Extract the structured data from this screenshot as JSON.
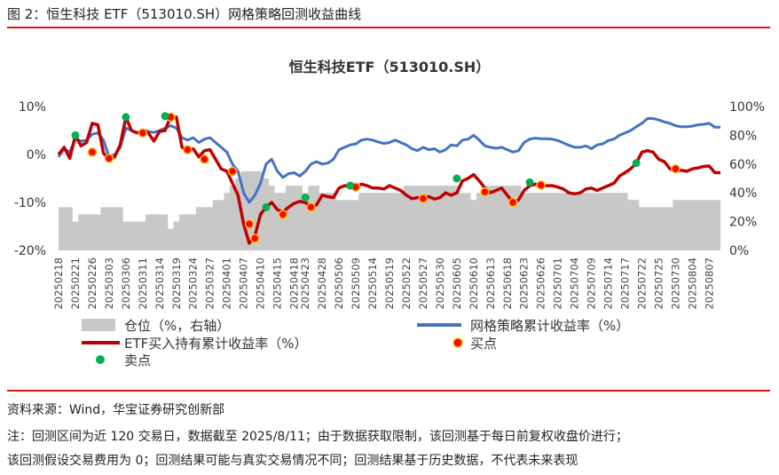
{
  "figure": {
    "caption": "图 2：恒生科技 ETF（513010.SH）网格策略回测收益曲线",
    "source": "资料来源：Wind，华宝证券研究创新部",
    "note_line1": "注：回测区间为近 120 交易日，数据截至 2025/8/11；由于数据获取限制，该回测基于每日前复权收盘价进行；",
    "note_line2": "该回测假设交易费用为 0；回测结果可能与真实交易情况不同；回测结果基于历史数据，不代表未来表现"
  },
  "colors": {
    "accent_rule": "#dd1111",
    "position_area": "#c8c8c8",
    "grid_line": "#4472c4",
    "etf_line": "#c00000",
    "buy_point": "#ff0000",
    "buy_point_border": "#ffc000",
    "sell_point": "#00b050"
  },
  "chart_data": {
    "type": "line",
    "title": "恒生科技ETF（513010.SH）",
    "x_tick_labels": [
      "20250218",
      "20250221",
      "20250226",
      "20250303",
      "20250306",
      "20250311",
      "20250314",
      "20250319",
      "20250324",
      "20250327",
      "20250401",
      "20250407",
      "20250410",
      "20250415",
      "20250418",
      "20250423",
      "20250428",
      "20250506",
      "20250509",
      "20250514",
      "20250519",
      "20250522",
      "20250527",
      "20250530",
      "20250605",
      "20250610",
      "20250613",
      "20250618",
      "20250623",
      "20250626",
      "20250701",
      "20250704",
      "20250709",
      "20250714",
      "20250717",
      "20250722",
      "20250725",
      "20250730",
      "20250804",
      "20250807"
    ],
    "y_left": {
      "ticks": [
        "10%",
        "0%",
        "-10%",
        "-20%"
      ],
      "values": [
        10,
        0,
        -10,
        -20
      ],
      "range": [
        -20,
        10
      ]
    },
    "y_right": {
      "ticks": [
        "100%",
        "80%",
        "60%",
        "40%",
        "20%",
        "0%"
      ],
      "values": [
        100,
        80,
        60,
        40,
        20,
        0
      ],
      "range": [
        0,
        100
      ]
    },
    "legend": [
      {
        "key": "position",
        "label": "仓位（%，右轴）"
      },
      {
        "key": "grid",
        "label": "网格策略累计收益率（%）"
      },
      {
        "key": "etf",
        "label": "ETF买入持有累计收益率（%）"
      },
      {
        "key": "buy",
        "label": "买点"
      },
      {
        "key": "sell",
        "label": "卖点"
      }
    ],
    "series": [
      {
        "name": "网格策略累计收益率（%）",
        "axis": "left",
        "x": [
          "20250218",
          "20250219",
          "20250220",
          "20250221",
          "20250224",
          "20250225",
          "20250226",
          "20250227",
          "20250228",
          "20250303",
          "20250304",
          "20250305",
          "20250306",
          "20250307",
          "20250310",
          "20250311",
          "20250312",
          "20250313",
          "20250314",
          "20250317",
          "20250318",
          "20250319",
          "20250320",
          "20250321",
          "20250324",
          "20250325",
          "20250326",
          "20250327",
          "20250328",
          "20250331",
          "20250401",
          "20250402",
          "20250403",
          "20250407",
          "20250408",
          "20250409",
          "20250410",
          "20250411",
          "20250414",
          "20250415",
          "20250416",
          "20250417",
          "20250418",
          "20250422",
          "20250423",
          "20250424",
          "20250425",
          "20250428",
          "20250429",
          "20250430",
          "20250506",
          "20250507",
          "20250508",
          "20250509",
          "20250512",
          "20250513",
          "20250514",
          "20250515",
          "20250516",
          "20250519",
          "20250520",
          "20250521",
          "20250522",
          "20250523",
          "20250526",
          "20250527",
          "20250528",
          "20250529",
          "20250530",
          "20250603",
          "20250604",
          "20250605",
          "20250606",
          "20250609",
          "20250610",
          "20250611",
          "20250612",
          "20250613",
          "20250616",
          "20250617",
          "20250618",
          "20250619",
          "20250620",
          "20250623",
          "20250624",
          "20250625",
          "20250626",
          "20250627",
          "20250630",
          "20250701",
          "20250702",
          "20250703",
          "20250704",
          "20250707",
          "20250708",
          "20250709",
          "20250710",
          "20250711",
          "20250714",
          "20250715",
          "20250716",
          "20250717",
          "20250718",
          "20250721",
          "20250722",
          "20250723",
          "20250724",
          "20250725",
          "20250728",
          "20250729",
          "20250730",
          "20250731",
          "20250801",
          "20250804",
          "20250805",
          "20250806",
          "20250807",
          "20250808",
          "20250811"
        ],
        "values": [
          -0.5,
          1.2,
          0.5,
          3.2,
          2.8,
          3.0,
          4.2,
          4.5,
          3.0,
          -0.5,
          0.0,
          1.5,
          5.5,
          5.0,
          4.5,
          5.2,
          4.8,
          4.6,
          5.0,
          5.5,
          6.0,
          5.5,
          3.5,
          3.0,
          3.5,
          2.5,
          3.2,
          3.5,
          2.5,
          1.5,
          0.5,
          -2.0,
          -3.5,
          -8.0,
          -10.0,
          -8.5,
          -6.0,
          -2.0,
          -1.0,
          -3.5,
          -4.8,
          -4.0,
          -3.8,
          -4.5,
          -3.5,
          -2.0,
          -1.5,
          -2.0,
          -1.8,
          -1.0,
          1.0,
          1.5,
          2.0,
          2.2,
          3.0,
          3.2,
          3.0,
          2.6,
          2.3,
          2.5,
          3.0,
          2.5,
          2.0,
          1.2,
          0.8,
          1.5,
          1.0,
          1.2,
          0.5,
          1.0,
          2.0,
          1.8,
          3.0,
          3.2,
          4.0,
          3.0,
          1.8,
          1.5,
          1.3,
          1.5,
          1.0,
          0.5,
          0.8,
          2.5,
          3.2,
          3.4,
          3.3,
          3.3,
          3.2,
          2.9,
          2.4,
          1.9,
          1.5,
          1.5,
          1.8,
          1.2,
          2.0,
          2.2,
          2.9,
          3.2,
          4.0,
          4.5,
          5.0,
          5.8,
          6.5,
          7.5,
          7.5,
          7.2,
          6.8,
          6.5,
          6.0,
          5.8,
          5.8,
          5.9,
          6.2,
          6.3,
          6.5,
          5.7,
          5.7
        ]
      },
      {
        "name": "ETF买入持有累计收益率（%）",
        "axis": "left",
        "x": [
          "20250218",
          "20250219",
          "20250220",
          "20250221",
          "20250224",
          "20250225",
          "20250226",
          "20250227",
          "20250228",
          "20250303",
          "20250304",
          "20250305",
          "20250306",
          "20250307",
          "20250310",
          "20250311",
          "20250312",
          "20250313",
          "20250314",
          "20250317",
          "20250318",
          "20250319",
          "20250320",
          "20250321",
          "20250324",
          "20250325",
          "20250326",
          "20250327",
          "20250328",
          "20250331",
          "20250401",
          "20250402",
          "20250403",
          "20250407",
          "20250408",
          "20250409",
          "20250410",
          "20250411",
          "20250414",
          "20250415",
          "20250416",
          "20250417",
          "20250418",
          "20250422",
          "20250423",
          "20250424",
          "20250425",
          "20250428",
          "20250429",
          "20250430",
          "20250506",
          "20250507",
          "20250508",
          "20250509",
          "20250512",
          "20250513",
          "20250514",
          "20250515",
          "20250516",
          "20250519",
          "20250520",
          "20250521",
          "20250522",
          "20250523",
          "20250526",
          "20250527",
          "20250528",
          "20250529",
          "20250530",
          "20250603",
          "20250604",
          "20250605",
          "20250606",
          "20250609",
          "20250610",
          "20250611",
          "20250612",
          "20250613",
          "20250616",
          "20250617",
          "20250618",
          "20250619",
          "20250620",
          "20250623",
          "20250624",
          "20250625",
          "20250626",
          "20250627",
          "20250630",
          "20250701",
          "20250702",
          "20250703",
          "20250704",
          "20250707",
          "20250708",
          "20250709",
          "20250710",
          "20250711",
          "20250714",
          "20250715",
          "20250716",
          "20250717",
          "20250718",
          "20250721",
          "20250722",
          "20250723",
          "20250724",
          "20250725",
          "20250728",
          "20250729",
          "20250730",
          "20250731",
          "20250801",
          "20250804",
          "20250805",
          "20250806",
          "20250807",
          "20250808",
          "20250811"
        ],
        "values": [
          0.0,
          1.5,
          -0.8,
          4.0,
          1.8,
          2.5,
          6.5,
          6.2,
          0.3,
          -1.0,
          -0.5,
          2.0,
          7.8,
          5.0,
          4.5,
          5.0,
          4.5,
          2.8,
          4.8,
          5.0,
          8.0,
          7.8,
          1.5,
          0.8,
          1.2,
          -0.5,
          0.8,
          1.0,
          -1.0,
          -3.0,
          -3.5,
          -6.0,
          -8.5,
          -14.5,
          -18.5,
          -17.0,
          -12.5,
          -11.0,
          -10.0,
          -11.5,
          -12.0,
          -11.0,
          -10.2,
          -9.8,
          -10.0,
          -11.0,
          -10.5,
          -8.5,
          -8.8,
          -9.0,
          -7.0,
          -6.5,
          -6.8,
          -6.8,
          -6.2,
          -6.5,
          -7.0,
          -7.0,
          -7.2,
          -6.5,
          -7.0,
          -7.5,
          -8.5,
          -9.2,
          -9.0,
          -9.0,
          -8.8,
          -9.3,
          -9.0,
          -8.0,
          -8.5,
          -8.0,
          -5.5,
          -5.0,
          -4.2,
          -5.5,
          -7.0,
          -8.0,
          -7.5,
          -7.0,
          -8.5,
          -10.0,
          -9.5,
          -7.5,
          -6.5,
          -6.2,
          -6.4,
          -6.5,
          -6.5,
          -6.8,
          -7.2,
          -8.0,
          -8.2,
          -8.0,
          -7.2,
          -7.0,
          -7.5,
          -7.0,
          -6.5,
          -6.0,
          -4.5,
          -3.8,
          -3.0,
          -1.8,
          0.5,
          0.8,
          0.5,
          -1.0,
          -1.5,
          -3.0,
          -3.5,
          -3.3,
          -3.5,
          -3.0,
          -2.8,
          -2.5,
          -2.4,
          -3.8,
          -3.8
        ]
      },
      {
        "name": "仓位（%，右轴）",
        "axis": "right",
        "x": [
          "20250218",
          "20250219",
          "20250220",
          "20250221",
          "20250224",
          "20250225",
          "20250226",
          "20250227",
          "20250228",
          "20250303",
          "20250304",
          "20250305",
          "20250306",
          "20250307",
          "20250310",
          "20250311",
          "20250312",
          "20250313",
          "20250314",
          "20250317",
          "20250318",
          "20250319",
          "20250320",
          "20250321",
          "20250324",
          "20250325",
          "20250326",
          "20250327",
          "20250328",
          "20250331",
          "20250401",
          "20250402",
          "20250403",
          "20250407",
          "20250408",
          "20250409",
          "20250410",
          "20250411",
          "20250414",
          "20250415",
          "20250416",
          "20250417",
          "20250418",
          "20250422",
          "20250423",
          "20250424",
          "20250425",
          "20250428",
          "20250429",
          "20250430",
          "20250506",
          "20250507",
          "20250508",
          "20250509",
          "20250512",
          "20250513",
          "20250514",
          "20250515",
          "20250516",
          "20250519",
          "20250520",
          "20250521",
          "20250522",
          "20250523",
          "20250526",
          "20250527",
          "20250528",
          "20250529",
          "20250530",
          "20250603",
          "20250604",
          "20250605",
          "20250606",
          "20250609",
          "20250610",
          "20250611",
          "20250612",
          "20250613",
          "20250616",
          "20250617",
          "20250618",
          "20250619",
          "20250620",
          "20250623",
          "20250624",
          "20250625",
          "20250626",
          "20250627",
          "20250630",
          "20250701",
          "20250702",
          "20250703",
          "20250704",
          "20250707",
          "20250708",
          "20250709",
          "20250710",
          "20250711",
          "20250714",
          "20250715",
          "20250716",
          "20250717",
          "20250718",
          "20250721",
          "20250722",
          "20250723",
          "20250724",
          "20250725",
          "20250728",
          "20250729",
          "20250730",
          "20250731",
          "20250801",
          "20250804",
          "20250805",
          "20250806",
          "20250807",
          "20250808",
          "20250811"
        ],
        "values": [
          30,
          30,
          30,
          20,
          25,
          25,
          25,
          25,
          30,
          30,
          30,
          30,
          20,
          20,
          20,
          20,
          25,
          25,
          25,
          25,
          15,
          20,
          25,
          25,
          25,
          30,
          30,
          30,
          35,
          35,
          40,
          45,
          50,
          55,
          55,
          55,
          55,
          50,
          45,
          40,
          40,
          45,
          45,
          45,
          40,
          45,
          45,
          40,
          40,
          40,
          35,
          35,
          35,
          35,
          40,
          40,
          40,
          40,
          40,
          40,
          40,
          40,
          45,
          45,
          45,
          45,
          45,
          45,
          45,
          45,
          45,
          45,
          40,
          40,
          35,
          40,
          45,
          45,
          45,
          45,
          45,
          45,
          45,
          40,
          40,
          40,
          40,
          40,
          40,
          40,
          40,
          40,
          40,
          40,
          40,
          40,
          40,
          40,
          40,
          40,
          40,
          40,
          35,
          35,
          30,
          30,
          30,
          30,
          30,
          30,
          35,
          35,
          35,
          35,
          35,
          35,
          35,
          35,
          35
        ]
      }
    ],
    "buy_points": [
      {
        "x": "20250226",
        "y": 0.5
      },
      {
        "x": "20250303",
        "y": -0.8
      },
      {
        "x": "20250311",
        "y": 4.5
      },
      {
        "x": "20250318",
        "y": 7.8
      },
      {
        "x": "20250321",
        "y": 1.0
      },
      {
        "x": "20250326",
        "y": -1.0
      },
      {
        "x": "20250402",
        "y": -3.5
      },
      {
        "x": "20250408",
        "y": -14.5
      },
      {
        "x": "20250409",
        "y": -17.5
      },
      {
        "x": "20250416",
        "y": -12.5
      },
      {
        "x": "20250424",
        "y": -11.0
      },
      {
        "x": "20250509",
        "y": -6.8
      },
      {
        "x": "20250527",
        "y": -9.2
      },
      {
        "x": "20250612",
        "y": -7.8
      },
      {
        "x": "20250619",
        "y": -10.0
      },
      {
        "x": "20250626",
        "y": -6.4
      },
      {
        "x": "20250730",
        "y": -3.0
      }
    ],
    "sell_points": [
      {
        "x": "20250221",
        "y": 4.0
      },
      {
        "x": "20250306",
        "y": 7.8
      },
      {
        "x": "20250317",
        "y": 8.0
      },
      {
        "x": "20250411",
        "y": -11.0
      },
      {
        "x": "20250423",
        "y": -9.0
      },
      {
        "x": "20250508",
        "y": -6.5
      },
      {
        "x": "20250605",
        "y": -5.0
      },
      {
        "x": "20250624",
        "y": -5.8
      },
      {
        "x": "20250721",
        "y": -1.8
      }
    ]
  }
}
